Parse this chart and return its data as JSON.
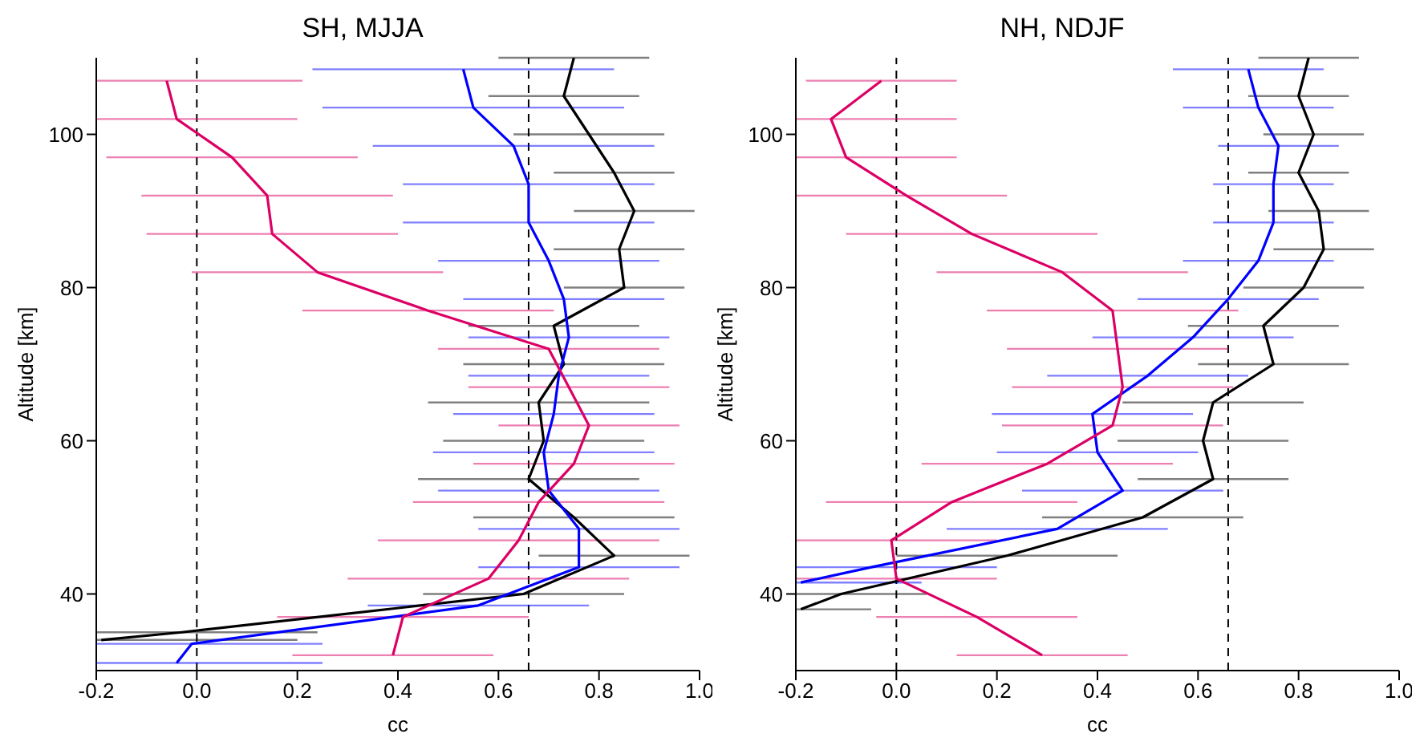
{
  "chart_data": [
    {
      "type": "line",
      "title": "SH, MJJA",
      "xlabel": "cc",
      "ylabel": "Altitude [km]",
      "xlim": [
        -0.2,
        1.0
      ],
      "ylim": [
        30,
        110
      ],
      "xticks": [
        {
          "value": -0.2,
          "label": "-0.2"
        },
        {
          "value": 0,
          "label": "0.0"
        },
        {
          "value": 0.2,
          "label": "0.2"
        },
        {
          "value": 0.4,
          "label": "0.4"
        },
        {
          "value": 0.6,
          "label": "0.6"
        },
        {
          "value": 0.8,
          "label": "0.8"
        },
        {
          "value": 1.0,
          "label": "1.0"
        }
      ],
      "yticks": [
        40,
        60,
        80,
        100
      ],
      "grid": false,
      "legend": false,
      "marker": "none",
      "line_style": "solid",
      "ref_lines": [
        {
          "axis": "x",
          "value": 0,
          "line_style": "dashed",
          "color": "#000000"
        },
        {
          "axis": "x",
          "value": 0.66,
          "line_style": "dashed",
          "color": "#000000"
        }
      ],
      "series": [
        {
          "color": "#000000",
          "x": [
            0.75,
            0.73,
            0.78,
            0.83,
            0.87,
            0.84,
            0.85,
            0.71,
            0.73,
            0.68,
            0.69,
            0.66,
            0.75,
            0.83,
            0.65,
            -0.03,
            -0.19
          ],
          "values": [
            110,
            105,
            100,
            95,
            90,
            85,
            80,
            75,
            70,
            65,
            60,
            55,
            50,
            45,
            40,
            35,
            34
          ],
          "xerrors": [
            0.15,
            0.15,
            0.15,
            0.12,
            0.12,
            0.13,
            0.12,
            0.17,
            0.2,
            0.22,
            0.2,
            0.22,
            0.2,
            0.15,
            0.2,
            [
              -0.2,
              0.24
            ],
            [
              -0.2,
              0.2
            ]
          ]
        },
        {
          "color": "#0000ff",
          "x": [
            0.53,
            0.55,
            0.63,
            0.66,
            0.66,
            0.7,
            0.73,
            0.74,
            0.72,
            0.71,
            0.69,
            0.7,
            0.76,
            0.76,
            0.56,
            -0.01,
            -0.04
          ],
          "values": [
            108.5,
            103.5,
            98.5,
            93.5,
            88.5,
            83.5,
            78.5,
            73.5,
            68.5,
            63.5,
            58.5,
            53.5,
            48.5,
            43.5,
            38.5,
            33.5,
            31
          ],
          "xerrors": [
            0.3,
            0.3,
            0.28,
            0.25,
            0.25,
            0.22,
            0.2,
            0.2,
            0.18,
            0.2,
            0.22,
            0.22,
            0.2,
            0.2,
            0.22,
            [
              -0.2,
              0.25
            ],
            [
              -0.2,
              0.25
            ]
          ]
        },
        {
          "color": "#dc0064",
          "x": [
            -0.06,
            -0.04,
            0.07,
            0.14,
            0.15,
            0.24,
            0.46,
            0.7,
            0.74,
            0.78,
            0.75,
            0.68,
            0.64,
            0.58,
            0.41,
            0.39
          ],
          "values": [
            107,
            102,
            97,
            92,
            87,
            82,
            77,
            72,
            67,
            62,
            57,
            52,
            47,
            42,
            37,
            32
          ],
          "xerrors": [
            [
              -0.2,
              0.21
            ],
            [
              -0.2,
              0.2
            ],
            0.25,
            0.25,
            0.25,
            0.25,
            0.25,
            0.22,
            0.2,
            0.18,
            0.2,
            0.25,
            0.28,
            0.28,
            0.25,
            0.2
          ]
        }
      ]
    },
    {
      "type": "line",
      "title": "NH, NDJF",
      "xlabel": "cc",
      "ylabel": "Altitude [km]",
      "xlim": [
        -0.2,
        1.0
      ],
      "ylim": [
        30,
        110
      ],
      "xticks": [
        {
          "value": -0.2,
          "label": "-0.2"
        },
        {
          "value": 0,
          "label": "0.0"
        },
        {
          "value": 0.2,
          "label": "0.2"
        },
        {
          "value": 0.4,
          "label": "0.4"
        },
        {
          "value": 0.6,
          "label": "0.6"
        },
        {
          "value": 0.8,
          "label": "0.8"
        },
        {
          "value": 1.0,
          "label": "1.0"
        }
      ],
      "yticks": [
        40,
        60,
        80,
        100
      ],
      "grid": false,
      "legend": false,
      "marker": "none",
      "line_style": "solid",
      "ref_lines": [
        {
          "axis": "x",
          "value": 0,
          "line_style": "dashed",
          "color": "#000000"
        },
        {
          "axis": "x",
          "value": 0.66,
          "line_style": "dashed",
          "color": "#000000"
        }
      ],
      "series": [
        {
          "color": "#000000",
          "x": [
            0.82,
            0.8,
            0.83,
            0.8,
            0.84,
            0.85,
            0.81,
            0.73,
            0.75,
            0.63,
            0.61,
            0.63,
            0.49,
            0.22,
            -0.11,
            -0.19
          ],
          "values": [
            110,
            105,
            100,
            95,
            90,
            85,
            80,
            75,
            70,
            65,
            60,
            55,
            50,
            45,
            40,
            38
          ],
          "xerrors": [
            0.1,
            0.1,
            0.1,
            0.1,
            0.1,
            0.1,
            0.12,
            0.15,
            0.15,
            0.18,
            0.17,
            0.15,
            0.2,
            0.22,
            [
              -0.2,
              0.06
            ],
            [
              -0.2,
              -0.05
            ]
          ]
        },
        {
          "color": "#0000ff",
          "x": [
            0.7,
            0.72,
            0.76,
            0.75,
            0.75,
            0.72,
            0.66,
            0.59,
            0.5,
            0.39,
            0.4,
            0.45,
            0.32,
            -0.05,
            -0.19
          ],
          "values": [
            108.5,
            103.5,
            98.5,
            93.5,
            88.5,
            83.5,
            78.5,
            73.5,
            68.5,
            63.5,
            58.5,
            53.5,
            48.5,
            43.5,
            41.5
          ],
          "xerrors": [
            0.15,
            0.15,
            0.12,
            0.12,
            0.12,
            0.15,
            0.18,
            0.2,
            0.2,
            0.2,
            0.2,
            0.2,
            0.22,
            [
              -0.2,
              0.2
            ],
            [
              -0.2,
              0.05
            ]
          ]
        },
        {
          "color": "#dc0064",
          "x": [
            -0.03,
            -0.13,
            -0.1,
            0.02,
            0.15,
            0.33,
            0.43,
            0.44,
            0.45,
            0.43,
            0.3,
            0.11,
            -0.01,
            0.0,
            0.16,
            0.29
          ],
          "values": [
            107,
            102,
            97,
            92,
            87,
            82,
            77,
            72,
            67,
            62,
            57,
            52,
            47,
            42,
            37,
            32
          ],
          "xerrors": [
            0.15,
            [
              -0.2,
              0.12
            ],
            [
              -0.2,
              0.12
            ],
            [
              -0.2,
              0.22
            ],
            0.25,
            0.25,
            0.25,
            0.22,
            0.22,
            0.22,
            0.25,
            0.25,
            [
              -0.2,
              0.2
            ],
            [
              -0.2,
              0.2
            ],
            0.2,
            0.17
          ]
        }
      ]
    }
  ]
}
